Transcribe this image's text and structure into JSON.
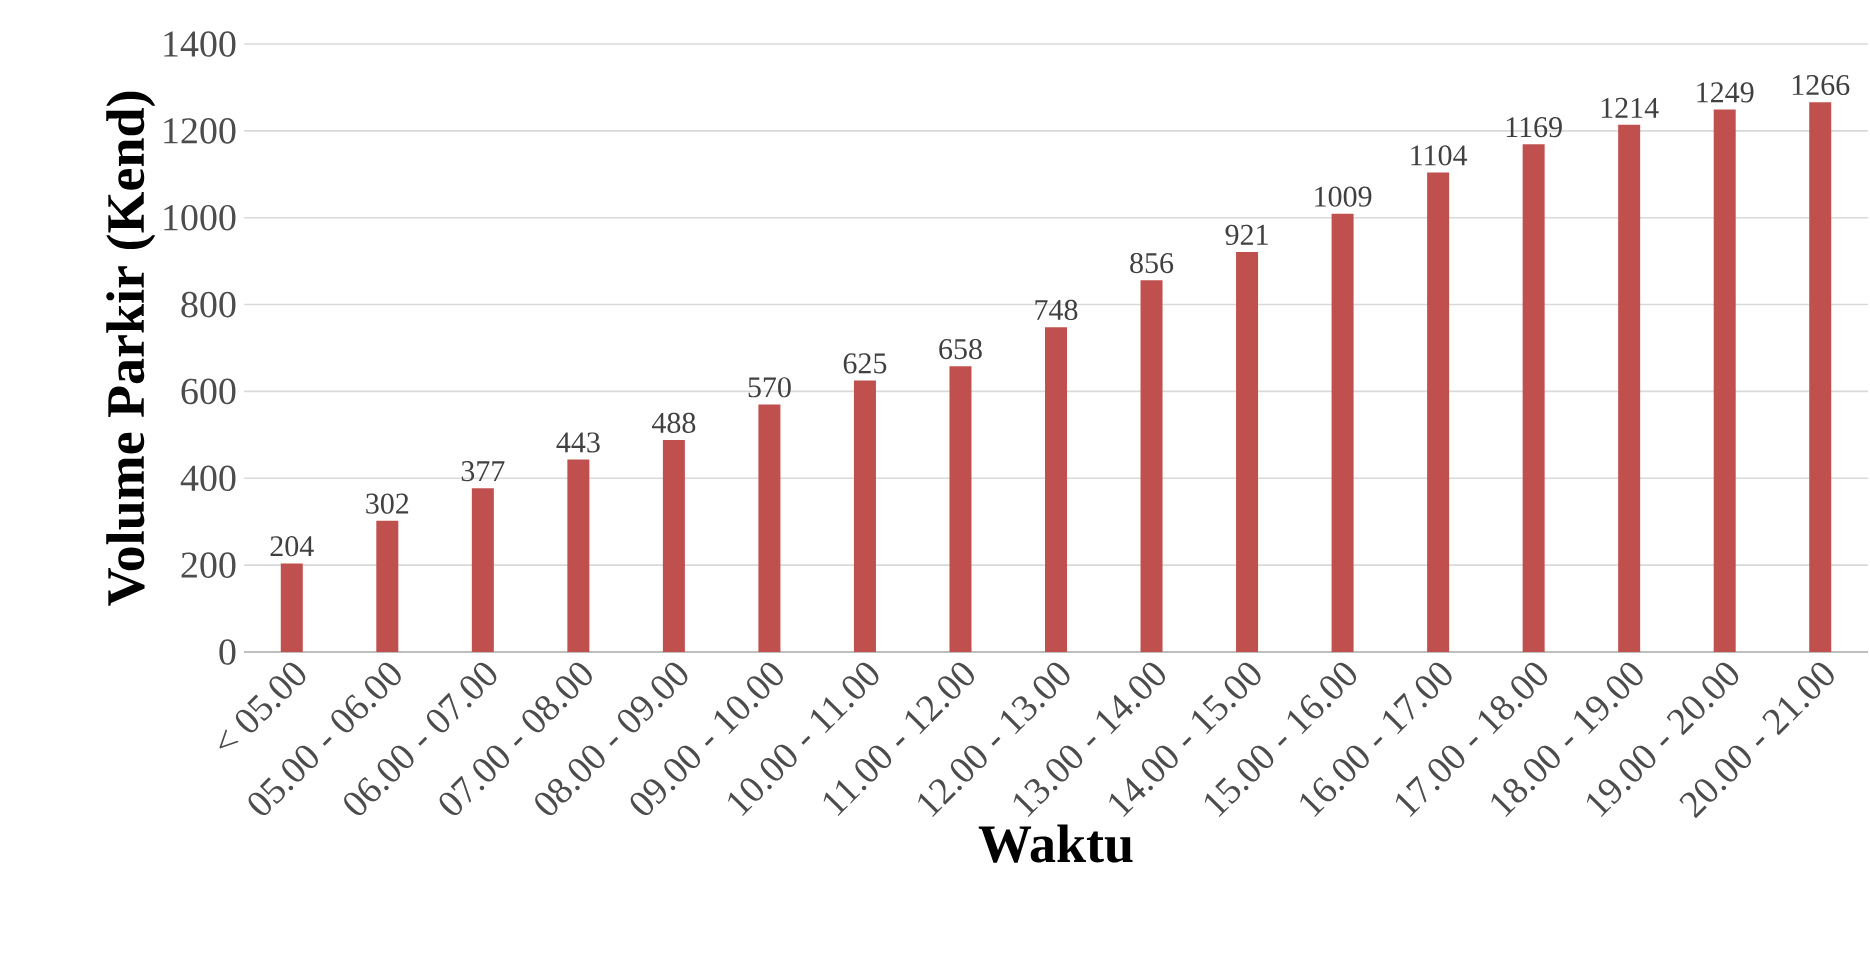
{
  "chart_data": {
    "type": "bar",
    "xlabel": "Waktu",
    "ylabel": "Volume Parkir (Kend)",
    "categories": [
      "< 05.00",
      "05.00 - 06.00",
      "06.00 - 07.00",
      "07.00 - 08.00",
      "08.00 - 09.00",
      "09.00 - 10.00",
      "10.00 - 11.00",
      "11.00 - 12.00",
      "12.00 - 13.00",
      "13.00 - 14.00",
      "14.00 - 15.00",
      "15.00 - 16.00",
      "16.00 - 17.00",
      "17.00 - 18.00",
      "18.00 - 19.00",
      "19.00 - 20.00",
      "20.00 - 21.00"
    ],
    "values": [
      204,
      302,
      377,
      443,
      488,
      570,
      625,
      658,
      748,
      856,
      921,
      1009,
      1104,
      1169,
      1214,
      1249,
      1266
    ],
    "color": "#c0504d",
    "ylim": [
      0,
      1400
    ],
    "yticks": [
      0,
      200,
      400,
      600,
      800,
      1000,
      1200,
      1400
    ],
    "grid": "y",
    "data_labels": true
  }
}
